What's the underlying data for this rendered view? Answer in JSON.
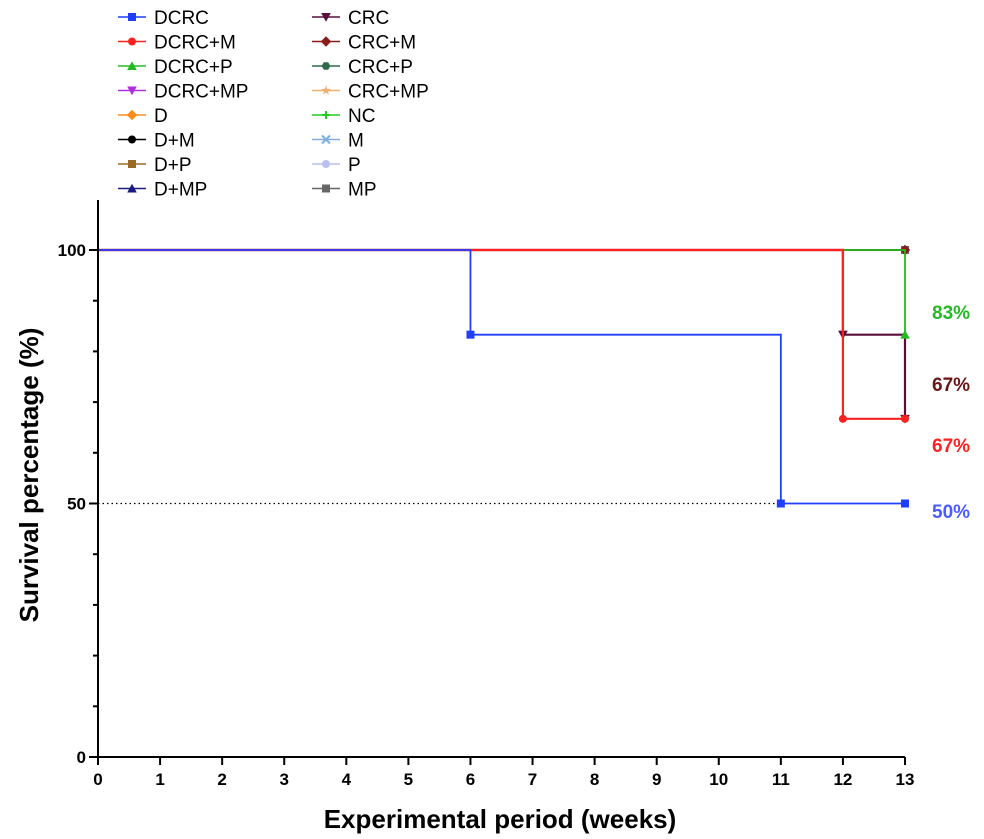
{
  "chart_data": {
    "type": "line",
    "step": true,
    "xlabel": "Experimental period (weeks)",
    "ylabel": "Survival percentage (%)",
    "xlim": [
      0,
      13
    ],
    "ylim": [
      0,
      100
    ],
    "x_ticks": [
      "0",
      "1",
      "2",
      "3",
      "4",
      "5",
      "6",
      "7",
      "8",
      "9",
      "10",
      "11",
      "12",
      "13"
    ],
    "y_ticks": [
      "0",
      "50",
      "100"
    ],
    "reference_line": {
      "y": 50,
      "style": "dotted"
    },
    "legend": {
      "placement": "top-left",
      "columns": [
        [
          {
            "name": "DCRC",
            "color": "#1f3fff",
            "marker": "square"
          },
          {
            "name": "DCRC+M",
            "color": "#ff2020",
            "marker": "circle"
          },
          {
            "name": "DCRC+P",
            "color": "#22bb22",
            "marker": "triangle-up"
          },
          {
            "name": "DCRC+MP",
            "color": "#b030e0",
            "marker": "triangle-down"
          },
          {
            "name": "D",
            "color": "#ff8c1a",
            "marker": "diamond"
          },
          {
            "name": "D+M",
            "color": "#000000",
            "marker": "circle"
          },
          {
            "name": "D+P",
            "color": "#9a6a25",
            "marker": "square"
          },
          {
            "name": "D+MP",
            "color": "#1a1a80",
            "marker": "triangle-up"
          }
        ],
        [
          {
            "name": "CRC",
            "color": "#5a0f3a",
            "marker": "triangle-down"
          },
          {
            "name": "CRC+M",
            "color": "#8b1a1a",
            "marker": "diamond"
          },
          {
            "name": "CRC+P",
            "color": "#2e6b4a",
            "marker": "hexagon"
          },
          {
            "name": "CRC+MP",
            "color": "#f0b070",
            "marker": "star"
          },
          {
            "name": "NC",
            "color": "#22cc22",
            "marker": "plus"
          },
          {
            "name": "M",
            "color": "#7fb0e0",
            "marker": "cross"
          },
          {
            "name": "P",
            "color": "#b8c0f0",
            "marker": "circle"
          },
          {
            "name": "MP",
            "color": "#666666",
            "marker": "square"
          }
        ]
      ]
    },
    "series": [
      {
        "name": "DCRC",
        "color": "#1f3fff",
        "marker": "square",
        "x": [
          0,
          6,
          11,
          13
        ],
        "y": [
          100,
          83.3,
          50,
          50
        ],
        "markers_at": [
          [
            6,
            83.3
          ],
          [
            11,
            50
          ],
          [
            13,
            50
          ]
        ]
      },
      {
        "name": "DCRC+M",
        "color": "#ff2020",
        "marker": "circle",
        "x": [
          0,
          12,
          13
        ],
        "y": [
          100,
          66.7,
          66.7
        ],
        "markers_at": [
          [
            12,
            66.7
          ],
          [
            13,
            66.7
          ]
        ]
      },
      {
        "name": "DCRC+P",
        "color": "#22bb22",
        "marker": "triangle-up",
        "x": [
          0,
          13
        ],
        "y": [
          100,
          83.3
        ],
        "markers_at": [
          [
            13,
            83.3
          ]
        ]
      },
      {
        "name": "CRC",
        "color": "#5a0f3a",
        "marker": "triangle-down",
        "x": [
          0,
          12,
          13
        ],
        "y": [
          100,
          83.3,
          66.7
        ],
        "markers_at": [
          [
            12,
            83.3
          ],
          [
            13,
            66.7
          ]
        ]
      },
      {
        "name": "CRC+M",
        "color": "#8b1a1a",
        "marker": "diamond",
        "x": [
          0,
          13
        ],
        "y": [
          100,
          100
        ],
        "markers_at": [
          [
            13,
            100
          ]
        ]
      },
      {
        "name": "NC",
        "color": "#22cc22",
        "marker": "plus",
        "x": [
          0,
          13
        ],
        "y": [
          100,
          100
        ],
        "markers_at": [
          [
            13,
            100
          ]
        ]
      },
      {
        "name": "MP",
        "color": "#666666",
        "marker": "square",
        "x": [
          0,
          13
        ],
        "y": [
          100,
          100
        ],
        "markers_at": [
          [
            13,
            100
          ]
        ]
      },
      {
        "name": "D+M",
        "color": "#000000",
        "marker": "circle",
        "x": [
          0,
          13
        ],
        "y": [
          100,
          100
        ],
        "markers_at": [
          [
            13,
            100
          ]
        ]
      }
    ],
    "end_labels": [
      {
        "text": "83%",
        "color": "#22bb22",
        "y": 87.8
      },
      {
        "text": "67%",
        "color": "#6b1515",
        "y": 73.6
      },
      {
        "text": "67%",
        "color": "#ff2020",
        "y": 61.5
      },
      {
        "text": "50%",
        "color": "#4a5cff",
        "y": 48.5
      }
    ]
  }
}
